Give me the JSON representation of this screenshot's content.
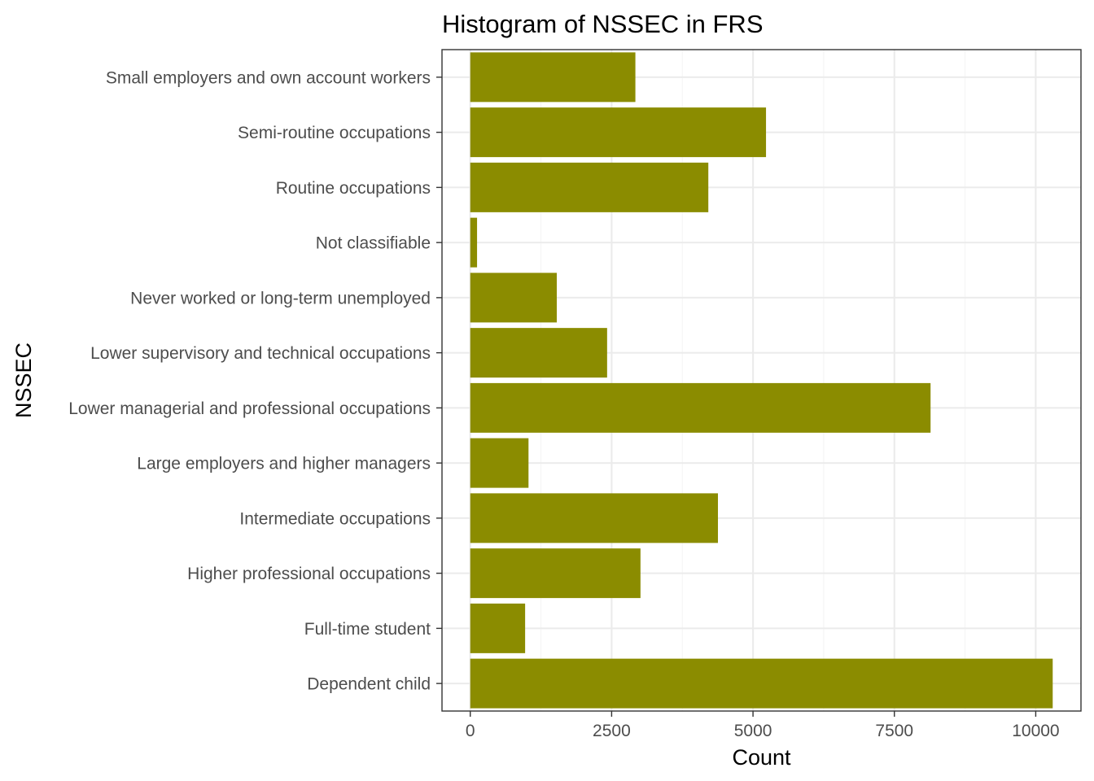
{
  "chart_data": {
    "type": "bar",
    "orientation": "horizontal",
    "title": "Histogram of NSSEC in FRS",
    "xlabel": "Count",
    "ylabel": "NSSEC",
    "categories": [
      "Dependent child",
      "Full-time student",
      "Higher professional occupations",
      "Intermediate occupations",
      "Large employers and higher managers",
      "Lower managerial and professional occupations",
      "Lower supervisory and technical occupations",
      "Never worked or long-term unemployed",
      "Not classifiable",
      "Routine occupations",
      "Semi-routine occupations",
      "Small employers and own account workers"
    ],
    "values": [
      10300,
      970,
      3010,
      4380,
      1030,
      8140,
      2420,
      1530,
      120,
      4210,
      5230,
      2920
    ],
    "xlim": [
      -500,
      10800
    ],
    "xticks": [
      0,
      2500,
      5000,
      7500,
      10000
    ],
    "xtick_labels": [
      "0",
      "2500",
      "5000",
      "7500",
      "10000"
    ],
    "grid": true,
    "legend": "none",
    "colors": {
      "bar": "#8b8c00",
      "grid_major": "#ebebeb",
      "grid_minor": "#f5f5f5",
      "panel_border": "#333333",
      "tick_label": "#4d4d4d",
      "text": "#000000"
    }
  }
}
